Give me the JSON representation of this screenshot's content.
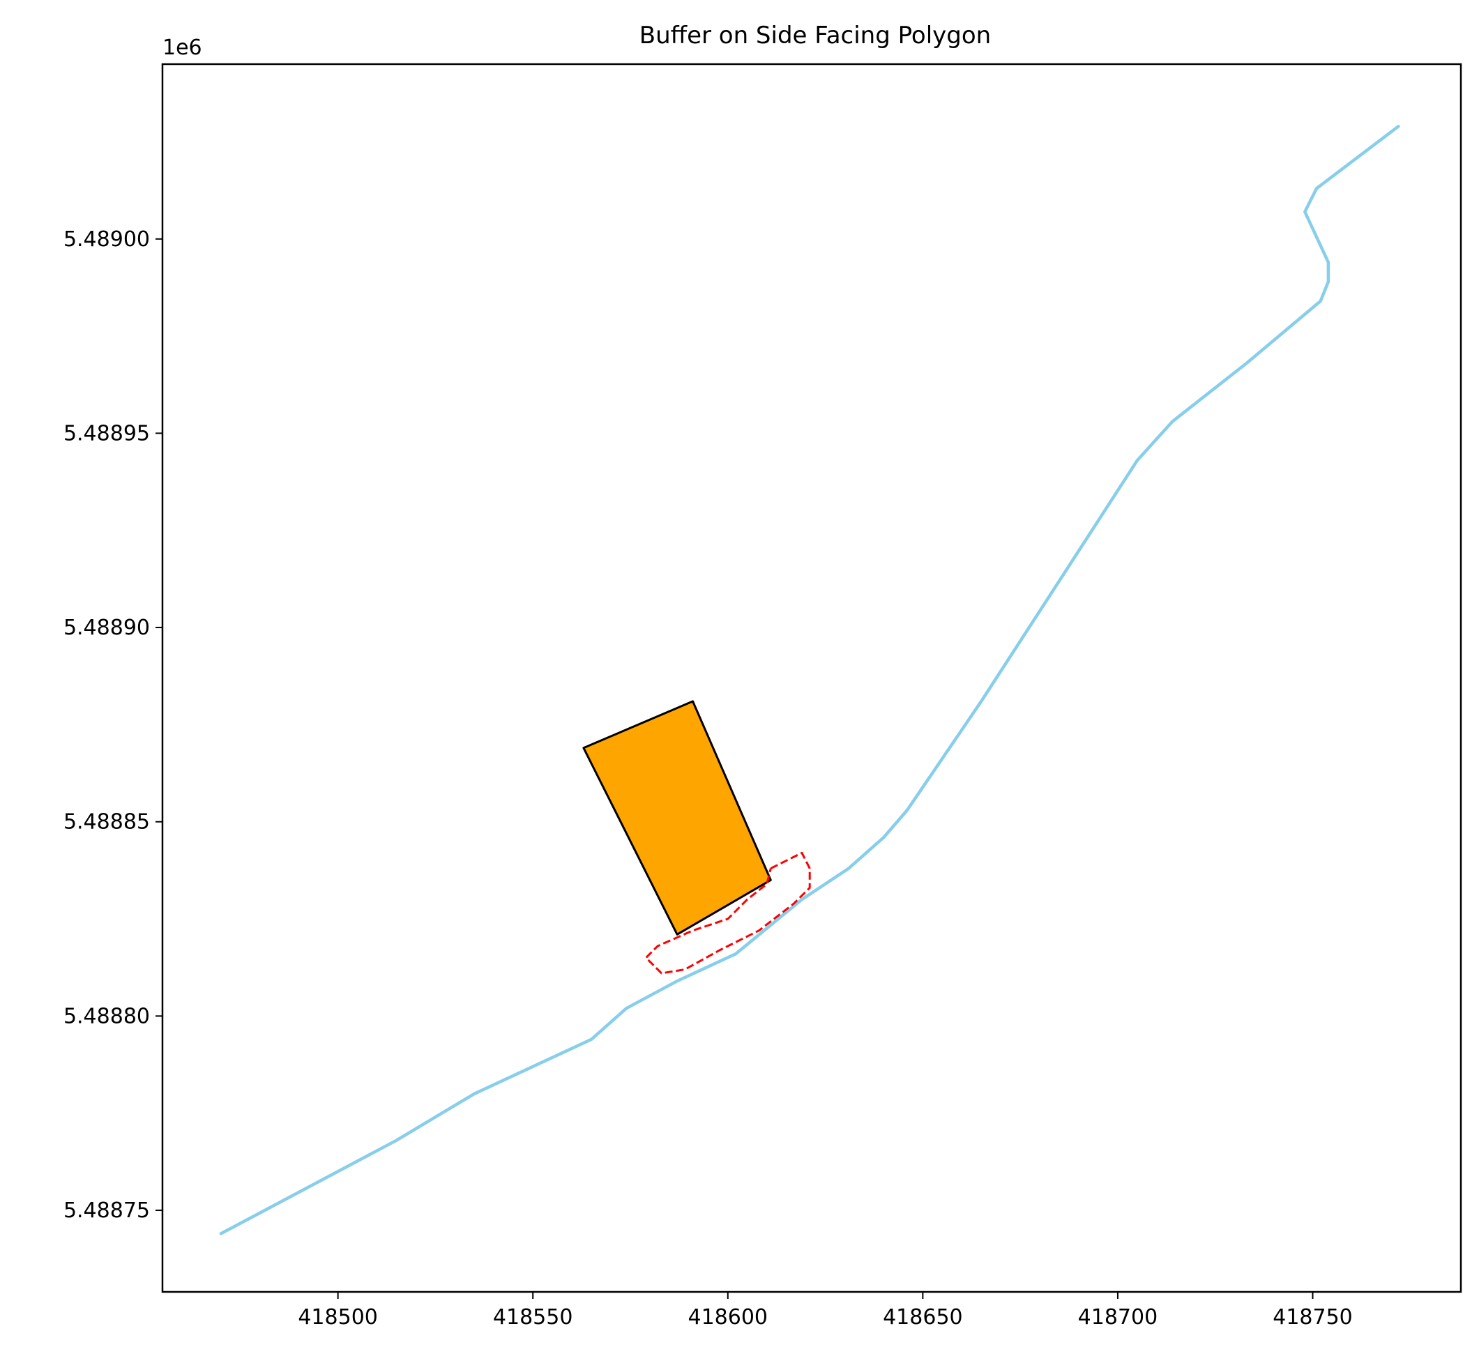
{
  "chart_data": {
    "type": "line",
    "title": "Buffer on Side Facing Polygon",
    "xlabel": "",
    "ylabel": "",
    "y_offset_label": "1e6",
    "xlim": [
      418455,
      418788
    ],
    "ylim": [
      5.488729,
      5.489045
    ],
    "x_ticks": [
      418500,
      418550,
      418600,
      418650,
      418700,
      418750
    ],
    "x_tick_labels": [
      "418500",
      "418550",
      "418600",
      "418650",
      "418700",
      "418750"
    ],
    "y_ticks": [
      5.48875,
      5.4888,
      5.48885,
      5.4889,
      5.48895,
      5.489
    ],
    "y_tick_labels": [
      "5.48875",
      "5.48880",
      "5.48885",
      "5.48890",
      "5.48895",
      "5.48900"
    ],
    "grid": false,
    "series": [
      {
        "kind": "line",
        "color": "#87CEEB",
        "x": [
          418470,
          418515,
          418535,
          418565,
          418574,
          418587,
          418602,
          418619,
          418631,
          418640,
          418646,
          418665,
          418685,
          418705,
          418714,
          418733,
          418752,
          418754,
          418754,
          418748,
          418751,
          418772
        ],
        "y": [
          5.488744,
          5.488768,
          5.48878,
          5.488794,
          5.488802,
          5.488809,
          5.488816,
          5.48883,
          5.488838,
          5.488846,
          5.488853,
          5.488881,
          5.488912,
          5.488943,
          5.488953,
          5.488968,
          5.488984,
          5.488989,
          5.488994,
          5.489007,
          5.489013,
          5.489029
        ]
      },
      {
        "kind": "polygon",
        "fill": "#FFA500",
        "stroke": "#000000",
        "x": [
          418563,
          418591,
          418611,
          418587
        ],
        "y": [
          5.488869,
          5.488881,
          5.488835,
          5.488821
        ]
      },
      {
        "kind": "dashed-outline",
        "color": "#FF0000",
        "x": [
          418611,
          418619,
          418621,
          418621,
          418617,
          418608,
          418598,
          418589,
          418583,
          418579,
          418582,
          418591,
          418600,
          418605,
          418610,
          418611
        ],
        "y": [
          5.488838,
          5.488842,
          5.488838,
          5.488833,
          5.488829,
          5.488822,
          5.488817,
          5.488812,
          5.488811,
          5.488815,
          5.488818,
          5.488822,
          5.488825,
          5.48883,
          5.488834,
          5.488838
        ]
      }
    ]
  }
}
